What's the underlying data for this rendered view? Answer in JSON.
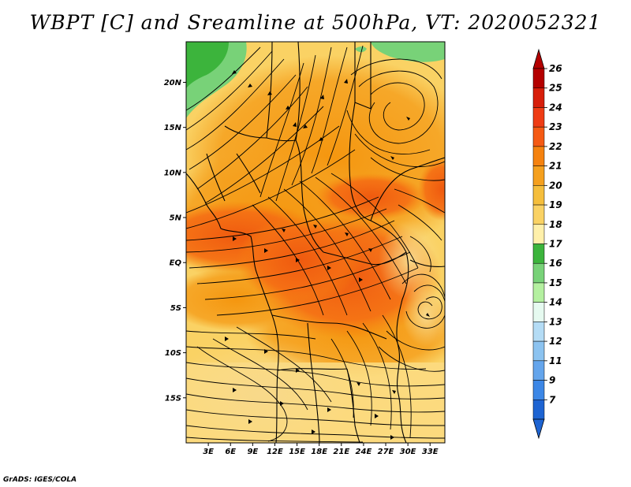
{
  "title": "WBPT [C] and Sreamline at 500hPa, VT: 2020052321",
  "credit": "GrADS: IGES/COLA",
  "map": {
    "lat_labels": [
      "20N",
      "15N",
      "10N",
      "5N",
      "EQ",
      "5S",
      "10S",
      "15S"
    ],
    "lat_values": [
      20,
      15,
      10,
      5,
      0,
      -5,
      -10,
      -15
    ],
    "lon_labels": [
      "3E",
      "6E",
      "9E",
      "12E",
      "15E",
      "18E",
      "21E",
      "24E",
      "27E",
      "30E",
      "33E"
    ],
    "lon_values": [
      3,
      6,
      9,
      12,
      15,
      18,
      21,
      24,
      27,
      30,
      33
    ],
    "lon_range": [
      0,
      35
    ],
    "lat_range": [
      -20,
      24.5
    ]
  },
  "colorbar": {
    "labels": [
      "26",
      "25",
      "24",
      "23",
      "22",
      "21",
      "20",
      "19",
      "18",
      "17",
      "16",
      "15",
      "14",
      "13",
      "12",
      "11",
      "9",
      "7"
    ],
    "colors": [
      "#b40000",
      "#d71e0a",
      "#ef3c14",
      "#f55a14",
      "#f5820f",
      "#f5a01e",
      "#f5be3c",
      "#fad264",
      "#fff0aa",
      "#3cb43c",
      "#78d278",
      "#b4f0a0",
      "#e6faf0",
      "#b4dcf5",
      "#8cc3f0",
      "#64a5ec",
      "#3c87e6",
      "#1e64d2"
    ]
  }
}
